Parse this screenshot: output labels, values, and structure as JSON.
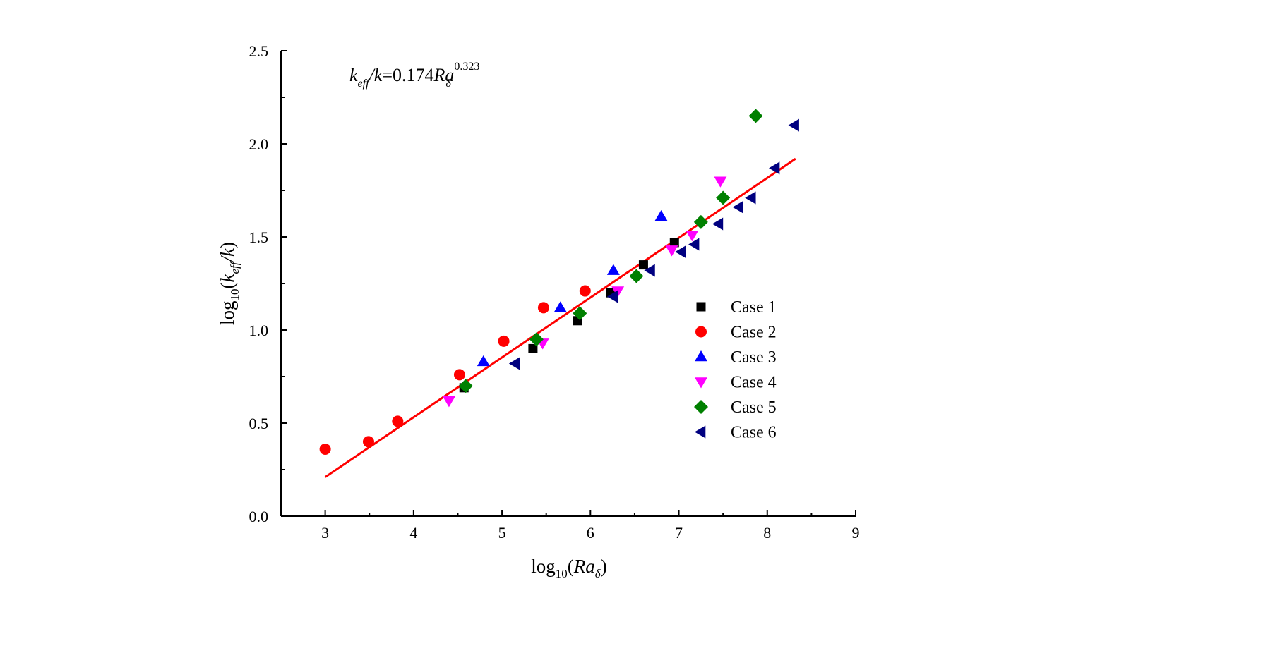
{
  "chart_data": {
    "type": "scatter",
    "equation": {
      "k": "k",
      "eff": "eff",
      "slash_k": "/k",
      "equals_coef": "=0.174",
      "Ra": "Ra",
      "exponent": "0.323",
      "delta": "δ"
    },
    "xlabel": {
      "prefix": "log",
      "base": "10",
      "open": "(",
      "Ra": "Ra",
      "delta": "δ",
      "close": ")"
    },
    "ylabel": {
      "prefix": "log",
      "base": "10",
      "open": "(",
      "k": "k",
      "eff": "eff",
      "slash_k": "/k",
      "close": ")"
    },
    "xlim": [
      2.5,
      9
    ],
    "ylim": [
      0,
      2.5
    ],
    "x_ticks": [
      3,
      4,
      5,
      6,
      7,
      8,
      9
    ],
    "x_tick_labels": [
      "3",
      "4",
      "5",
      "6",
      "7",
      "8",
      "9"
    ],
    "y_ticks": [
      0,
      0.5,
      1.0,
      1.5,
      2.0,
      2.5
    ],
    "y_tick_labels": [
      "0.0",
      "0.5",
      "1.0",
      "1.5",
      "2.0",
      "2.5"
    ],
    "grid": false,
    "legend_position": "center-right",
    "fit_line": {
      "color": "#ff0000",
      "x": [
        3.0,
        8.32
      ],
      "y": [
        0.21,
        1.92
      ]
    },
    "series": [
      {
        "name": "Case 1",
        "marker": "square",
        "color": "#000000",
        "points": [
          [
            4.57,
            0.69
          ],
          [
            5.35,
            0.9
          ],
          [
            5.85,
            1.05
          ],
          [
            6.23,
            1.2
          ],
          [
            6.6,
            1.35
          ],
          [
            6.95,
            1.47
          ]
        ]
      },
      {
        "name": "Case 2",
        "marker": "circle",
        "color": "#ff0000",
        "points": [
          [
            3.0,
            0.36
          ],
          [
            3.49,
            0.4
          ],
          [
            3.82,
            0.51
          ],
          [
            4.52,
            0.76
          ],
          [
            5.02,
            0.94
          ],
          [
            5.47,
            1.12
          ],
          [
            5.94,
            1.21
          ]
        ]
      },
      {
        "name": "Case 3",
        "marker": "triangle-up",
        "color": "#0000ff",
        "points": [
          [
            4.79,
            0.83
          ],
          [
            5.66,
            1.12
          ],
          [
            6.26,
            1.32
          ],
          [
            6.8,
            1.61
          ]
        ]
      },
      {
        "name": "Case 4",
        "marker": "triangle-down",
        "color": "#ff00ff",
        "points": [
          [
            4.4,
            0.62
          ],
          [
            5.46,
            0.93
          ],
          [
            6.31,
            1.21
          ],
          [
            6.92,
            1.43
          ],
          [
            7.15,
            1.51
          ],
          [
            7.47,
            1.8
          ]
        ]
      },
      {
        "name": "Case 5",
        "marker": "diamond",
        "color": "#008000",
        "points": [
          [
            4.59,
            0.7
          ],
          [
            5.39,
            0.95
          ],
          [
            5.88,
            1.09
          ],
          [
            6.52,
            1.29
          ],
          [
            7.25,
            1.58
          ],
          [
            7.5,
            1.71
          ],
          [
            7.87,
            2.15
          ]
        ]
      },
      {
        "name": "Case 6",
        "marker": "triangle-left",
        "color": "#000080",
        "points": [
          [
            5.15,
            0.82
          ],
          [
            6.26,
            1.18
          ],
          [
            6.68,
            1.32
          ],
          [
            7.03,
            1.42
          ],
          [
            7.18,
            1.46
          ],
          [
            7.45,
            1.57
          ],
          [
            7.68,
            1.66
          ],
          [
            7.82,
            1.71
          ],
          [
            8.09,
            1.87
          ],
          [
            8.31,
            2.1
          ]
        ]
      }
    ]
  }
}
